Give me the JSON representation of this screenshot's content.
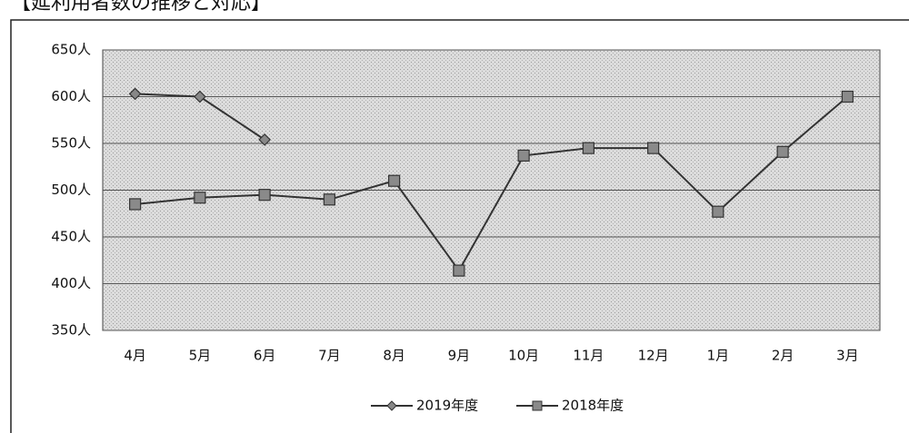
{
  "chart_data": {
    "type": "line",
    "title": "【延利用者数の推移と対応】",
    "categories": [
      "4月",
      "5月",
      "6月",
      "7月",
      "8月",
      "9月",
      "10月",
      "11月",
      "12月",
      "1月",
      "2月",
      "3月"
    ],
    "series": [
      {
        "name": "2019年度",
        "color": "#333333",
        "marker": "diamond",
        "values": [
          603,
          600,
          554,
          null,
          null,
          null,
          null,
          null,
          null,
          null,
          null,
          null
        ]
      },
      {
        "name": "2018年度",
        "color": "#333333",
        "marker": "square",
        "values": [
          485,
          492,
          495,
          490,
          510,
          414,
          537,
          545,
          545,
          477,
          541,
          600
        ]
      }
    ],
    "ylim": [
      350,
      650
    ],
    "yticks": [
      {
        "value": 350,
        "label": "350人"
      },
      {
        "value": 400,
        "label": "400人"
      },
      {
        "value": 450,
        "label": "450人"
      },
      {
        "value": 500,
        "label": "500人"
      },
      {
        "value": 550,
        "label": "550人"
      },
      {
        "value": 600,
        "label": "600人"
      },
      {
        "value": 650,
        "label": "650人"
      }
    ],
    "grid": true,
    "legend": "bottom"
  }
}
